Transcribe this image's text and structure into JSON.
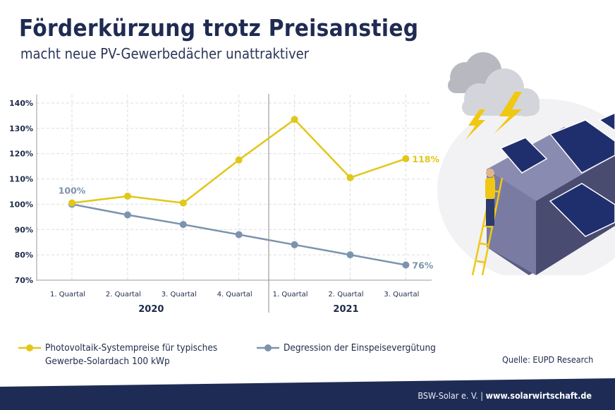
{
  "header": {
    "title": "Förderkürzung trotz Preisanstieg",
    "subtitle": "macht neue PV-Gewerbedächer unattraktiver"
  },
  "legend": {
    "series1": "Photovoltaik-Systempreise für typisches Gewerbe-Solardach 100 kWp",
    "series1_line1": "Photovoltaik-Systempreise für typisches",
    "series1_line2": "Gewerbe-Solardach 100 kWp",
    "series2": "Degression der Einspeisevergütung"
  },
  "source": "Quelle: EUPD Research",
  "footer": {
    "org": "BSW-Solar e. V. |",
    "url": "www.solarwirtschaft.de"
  },
  "colors": {
    "yellow": "#e2c719",
    "blue": "#7c93ad",
    "navy": "#1e2c55"
  },
  "chart_data": {
    "type": "line",
    "title": "Förderkürzung trotz Preisanstieg",
    "x": [
      "1. Quartal",
      "2. Quartal",
      "3. Quartal",
      "4. Quartal",
      "1. Quartal",
      "2. Quartal",
      "3. Quartal"
    ],
    "groups": [
      {
        "label": "2020",
        "count": 4
      },
      {
        "label": "2021",
        "count": 3
      }
    ],
    "yticks": [
      "70%",
      "80%",
      "90%",
      "100%",
      "110%",
      "120%",
      "130%",
      "140%"
    ],
    "ylim": [
      70,
      140
    ],
    "grid": true,
    "legend_position": "bottom",
    "series": [
      {
        "name": "Photovoltaik-Systempreise für typisches Gewerbe-Solardach 100 kWp",
        "color": "#e2c719",
        "values": [
          100.5,
          103.2,
          100.5,
          117.5,
          133.5,
          110.5,
          118
        ],
        "end_label": "118%"
      },
      {
        "name": "Degression der Einspeisevergütung",
        "color": "#7c93ad",
        "values": [
          100,
          95.8,
          92,
          88,
          84,
          80,
          76
        ],
        "start_label": "100%",
        "end_label": "76%"
      }
    ]
  }
}
